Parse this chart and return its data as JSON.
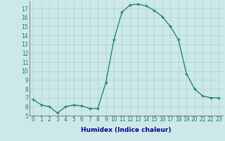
{
  "x": [
    0,
    1,
    2,
    3,
    4,
    5,
    6,
    7,
    8,
    9,
    10,
    11,
    12,
    13,
    14,
    15,
    16,
    17,
    18,
    19,
    20,
    21,
    22,
    23
  ],
  "y": [
    6.8,
    6.2,
    6.0,
    5.3,
    6.0,
    6.2,
    6.1,
    5.8,
    5.8,
    8.7,
    13.5,
    16.6,
    17.4,
    17.5,
    17.3,
    16.8,
    16.1,
    15.0,
    13.5,
    9.7,
    8.0,
    7.2,
    7.0,
    7.0
  ],
  "line_color": "#1a7a6e",
  "marker_color": "#1a7a6e",
  "bg_color": "#cce8e8",
  "grid_color": "#aed0d0",
  "xlabel": "Humidex (Indice chaleur)",
  "ylim": [
    5,
    17.8
  ],
  "xlim": [
    -0.5,
    23.5
  ],
  "yticks": [
    5,
    6,
    7,
    8,
    9,
    10,
    11,
    12,
    13,
    14,
    15,
    16,
    17
  ],
  "xticks": [
    0,
    1,
    2,
    3,
    4,
    5,
    6,
    7,
    8,
    9,
    10,
    11,
    12,
    13,
    14,
    15,
    16,
    17,
    18,
    19,
    20,
    21,
    22,
    23
  ],
  "xtick_labels": [
    "0",
    "1",
    "2",
    "3",
    "4",
    "5",
    "6",
    "7",
    "8",
    "9",
    "10",
    "11",
    "12",
    "13",
    "14",
    "15",
    "16",
    "17",
    "18",
    "19",
    "20",
    "21",
    "22",
    "23"
  ],
  "xlabel_color": "#00008b",
  "tick_fontsize": 5.5,
  "xlabel_fontsize": 6.5
}
